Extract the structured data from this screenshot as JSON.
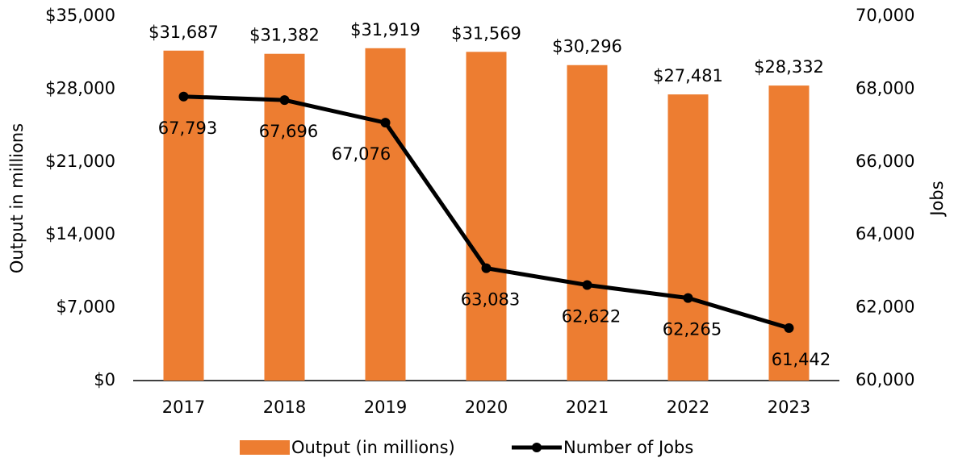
{
  "chart_data": {
    "type": "bar_line",
    "categories": [
      "2017",
      "2018",
      "2019",
      "2020",
      "2021",
      "2022",
      "2023"
    ],
    "series": [
      {
        "name": "Output (in millions)",
        "type": "bar",
        "color": "#ED7D31",
        "values": [
          31687,
          31382,
          31919,
          31569,
          30296,
          27481,
          28332
        ],
        "value_labels": [
          "$31,687",
          "$31,382",
          "$31,919",
          "$31,569",
          "$30,296",
          "$27,481",
          "$28,332"
        ]
      },
      {
        "name": "Number of Jobs",
        "type": "line",
        "axis": "y2",
        "color": "#000000",
        "values": [
          67793,
          67696,
          67076,
          63083,
          62622,
          62265,
          61442
        ],
        "value_labels": [
          "67,793",
          "67,696",
          "67,076",
          "63,083",
          "62,622",
          "62,265",
          "61,442"
        ]
      }
    ],
    "ylabel": "Output in millions",
    "y2label": "Jobs",
    "ylim": [
      0,
      35000
    ],
    "yticks": [
      {
        "value": 0,
        "label": "$0"
      },
      {
        "value": 7000,
        "label": "$7,000"
      },
      {
        "value": 14000,
        "label": "$14,000"
      },
      {
        "value": 21000,
        "label": "$21,000"
      },
      {
        "value": 28000,
        "label": "$28,000"
      },
      {
        "value": 35000,
        "label": "$35,000"
      }
    ],
    "y2lim": [
      60000,
      70000
    ],
    "y2ticks": [
      {
        "value": 60000,
        "label": "60,000"
      },
      {
        "value": 62000,
        "label": "62,000"
      },
      {
        "value": 64000,
        "label": "64,000"
      },
      {
        "value": 66000,
        "label": "66,000"
      },
      {
        "value": 68000,
        "label": "68,000"
      },
      {
        "value": 70000,
        "label": "70,000"
      }
    ],
    "legend": "bottom"
  }
}
